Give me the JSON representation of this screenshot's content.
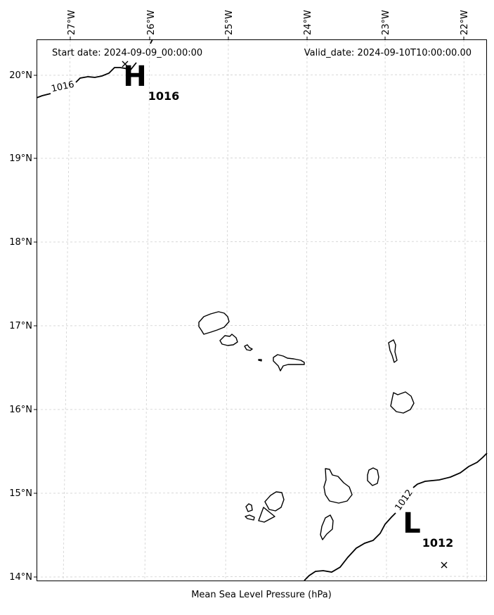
{
  "header": {
    "start_date": "Start date: 2024-09-09_00:00:00",
    "valid_date": "Valid_date: 2024-09-10T10:00:00.00"
  },
  "xlabel": "Mean Sea Level Pressure (hPa)",
  "lon_labels": [
    "27°W",
    "26°W",
    "25°W",
    "24°W",
    "23°W",
    "22°W"
  ],
  "lat_labels": [
    "20°N",
    "19°N",
    "18°N",
    "17°N",
    "16°N",
    "15°N",
    "14°N"
  ],
  "pressure_centers": [
    {
      "symbol": "H",
      "value": "1016"
    },
    {
      "symbol": "L",
      "value": "1012"
    }
  ],
  "contours": [
    {
      "label": "1016"
    },
    {
      "label": "1012"
    }
  ],
  "style": {
    "gridline_color": "#cccccc",
    "line_color": "#000000"
  }
}
